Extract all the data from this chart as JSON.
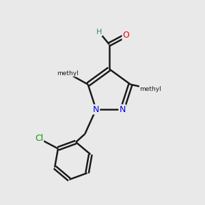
{
  "background_color": "#e9e9e9",
  "bond_color": "#1a1a1a",
  "bond_width": 1.8,
  "atom_colors": {
    "N": "#0000ee",
    "O": "#ee0000",
    "Cl": "#009900",
    "H": "#2e8b57"
  },
  "figsize": [
    3.0,
    3.0
  ],
  "dpi": 100
}
